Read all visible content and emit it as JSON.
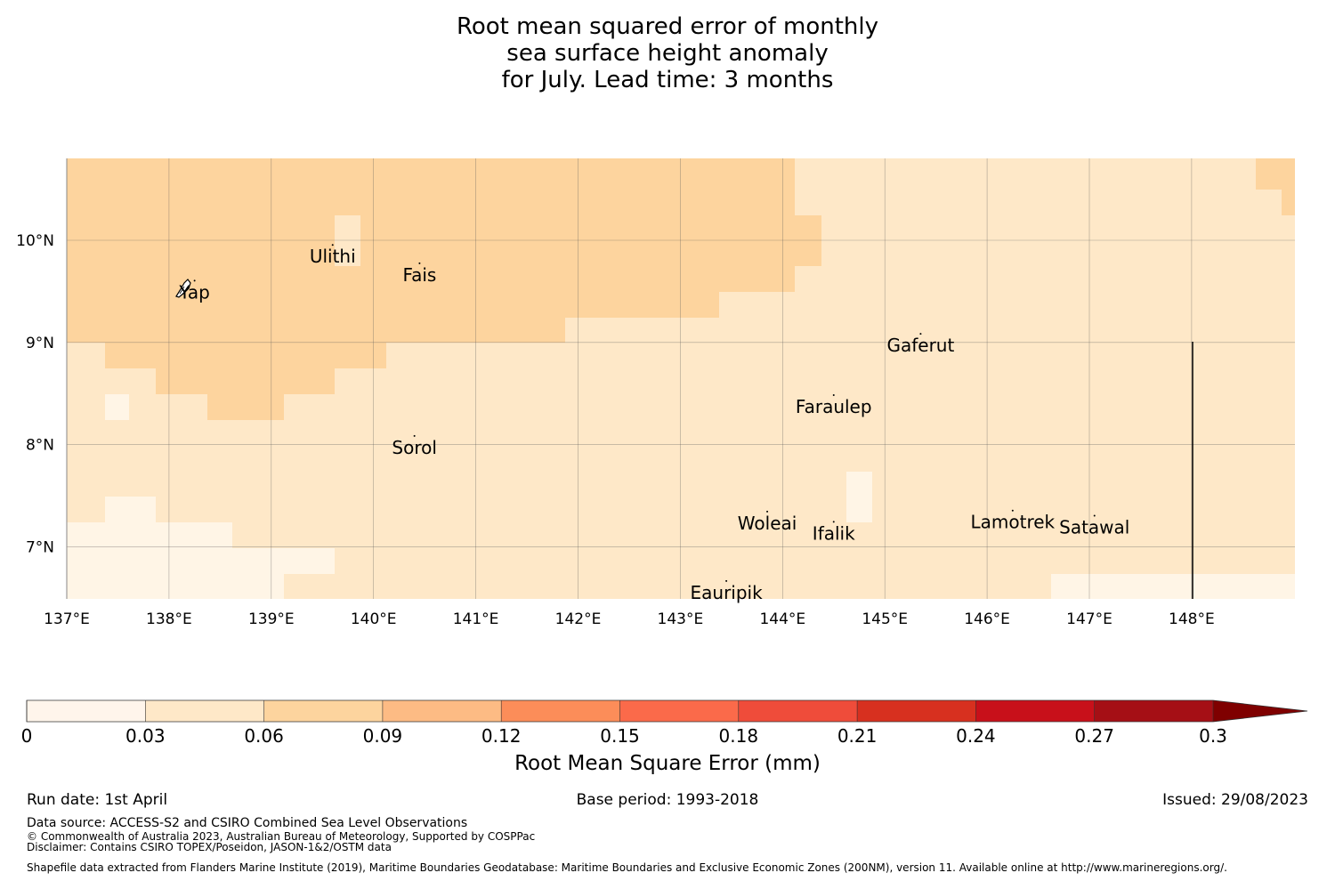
{
  "title": {
    "line1": "Root mean squared error of monthly",
    "line2": "sea surface height anomaly",
    "line3": "for July. Lead time: 3 months"
  },
  "map": {
    "lon_range": [
      137,
      149
    ],
    "lat_range": [
      6.5,
      10.8
    ],
    "lon_ticks": [
      "137°E",
      "138°E",
      "139°E",
      "140°E",
      "141°E",
      "142°E",
      "143°E",
      "144°E",
      "145°E",
      "146°E",
      "147°E",
      "148°E"
    ],
    "lat_ticks": [
      "10°N",
      "9°N",
      "8°N",
      "7°N"
    ],
    "cell_colors": {
      "band_0_03": "#fff5e6",
      "band_03_06": "#fee8c8",
      "band_06_09": "#fdd49e"
    },
    "places": [
      {
        "name": "Yap",
        "lon": 138.25,
        "lat": 9.5
      },
      {
        "name": "Ulithi",
        "lon": 139.6,
        "lat": 9.85
      },
      {
        "name": "Fais",
        "lon": 140.45,
        "lat": 9.67
      },
      {
        "name": "Gaferut",
        "lon": 145.35,
        "lat": 8.98
      },
      {
        "name": "Faraulep",
        "lon": 144.5,
        "lat": 8.38
      },
      {
        "name": "Sorol",
        "lon": 140.4,
        "lat": 7.98
      },
      {
        "name": "Woleai",
        "lon": 143.85,
        "lat": 7.24
      },
      {
        "name": "Ifalik",
        "lon": 144.5,
        "lat": 7.14
      },
      {
        "name": "Lamotrek",
        "lon": 146.25,
        "lat": 7.25
      },
      {
        "name": "Satawal",
        "lon": 147.05,
        "lat": 7.2
      },
      {
        "name": "Eauripik",
        "lon": 143.45,
        "lat": 6.56
      }
    ]
  },
  "colorbar": {
    "label": "Root Mean Square Error (mm)",
    "ticks": [
      "0",
      "0.03",
      "0.06",
      "0.09",
      "0.12",
      "0.15",
      "0.18",
      "0.21",
      "0.24",
      "0.27",
      "0.3"
    ],
    "colors": [
      "#fff5eb",
      "#fee8c8",
      "#fdd49e",
      "#fdbb84",
      "#fc8d59",
      "#fb6a4a",
      "#ef4c3a",
      "#d7301f",
      "#c8101a",
      "#a50f15",
      "#7f0000"
    ]
  },
  "footer": {
    "run_date": "Run date: 1st April",
    "base_period": "Base period: 1993-2018",
    "issued": "Issued: 29/08/2023",
    "data_source": "Data source: ACCESS-S2 and CSIRO Combined Sea Level Observations",
    "copyright": "© Commonwealth of Australia 2023, Australian Bureau of Meteorology, Supported by COSPPac",
    "disclaimer": "Disclaimer: Contains CSIRO TOPEX/Poseidon, JASON-1&2/OSTM data",
    "shapefile": "Shapefile data extracted from Flanders Marine Institute (2019), Maritime Boundaries Geodatabase: Maritime Boundaries and Exclusive Economic Zones (200NM), version 11. Available online at http://www.marineregions.org/."
  }
}
